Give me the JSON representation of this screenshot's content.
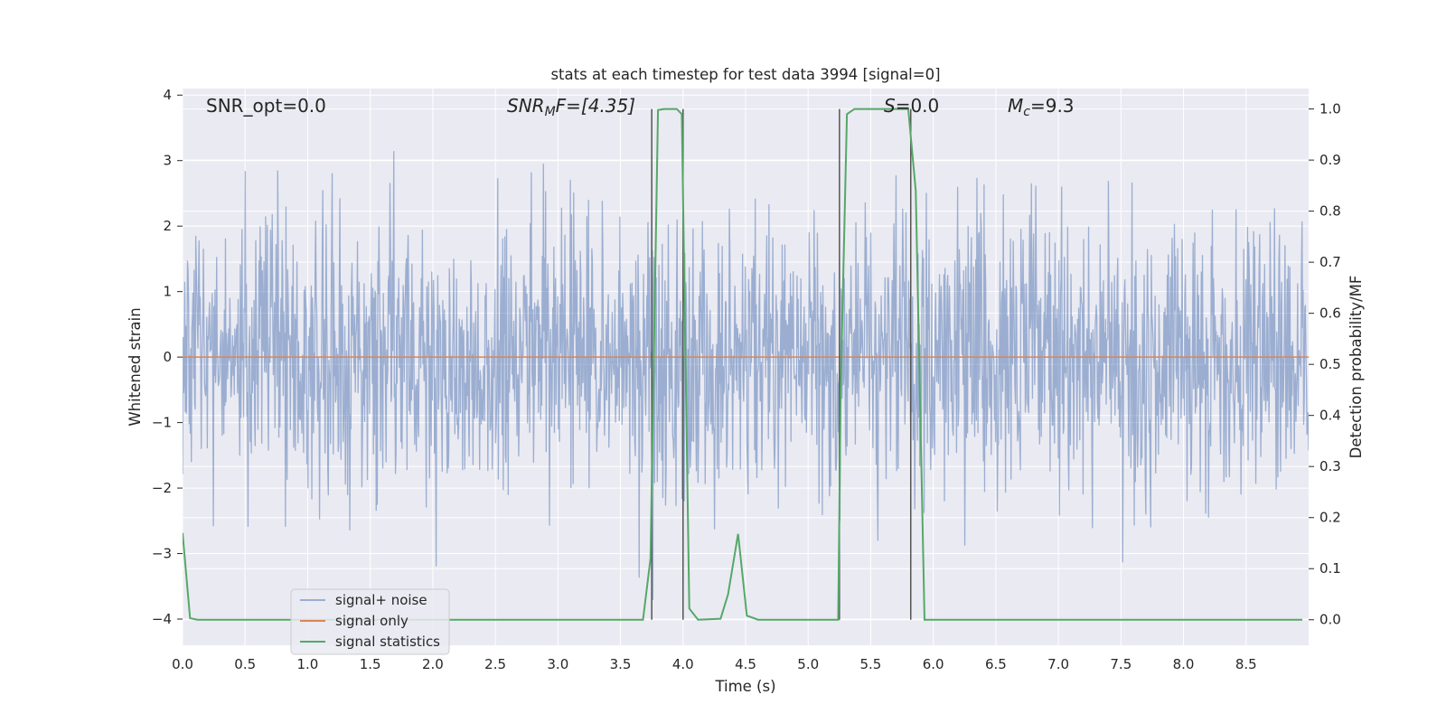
{
  "chart_data": {
    "type": "line",
    "title": "stats at each timestep for test data 3994 [signal=0]",
    "xlabel": "Time (s)",
    "ylabel": "Whitened strain",
    "y2label": "Detection probability/MF",
    "xlim": [
      0.0,
      9.0
    ],
    "ylim": [
      -4.4,
      4.1
    ],
    "y2lim": [
      -0.05,
      1.04
    ],
    "xticks": [
      "0.0",
      "0.5",
      "1.0",
      "1.5",
      "2.0",
      "2.5",
      "3.0",
      "3.5",
      "4.0",
      "4.5",
      "5.0",
      "5.5",
      "6.0",
      "6.5",
      "7.0",
      "7.5",
      "8.0",
      "8.5"
    ],
    "yticks": [
      "4",
      "3",
      "2",
      "1",
      "0",
      "−1",
      "−2",
      "−3",
      "−4"
    ],
    "y2ticks": [
      "1.0",
      "0.9",
      "0.8",
      "0.7",
      "0.6",
      "0.5",
      "0.4",
      "0.3",
      "0.2",
      "0.1",
      "0.0"
    ],
    "grid": true,
    "legend_position": "lower-left",
    "colors": {
      "plot_bg": "#eaeaf2",
      "grid": "#ffffff",
      "noise": "#4c72b0",
      "signal": "#dd8452",
      "stats": "#55a868",
      "vline": "#555555"
    },
    "annotations": {
      "snr_opt": "SNR_opt=0.0",
      "snr_mf_main": "SNR",
      "snr_mf_sub": "M",
      "snr_mf_rest": "F=[4.35]",
      "s_main": "S",
      "s_rest": "=0.0",
      "mc_main": "M",
      "mc_sub": "c",
      "mc_rest": "=9.3"
    },
    "series": [
      {
        "name": "signal+ noise",
        "kind": "noise",
        "x_range": [
          0.0,
          9.0
        ],
        "samples": 2048,
        "std": 1.05,
        "peak_range": [
          -3.7,
          3.45
        ]
      },
      {
        "name": "signal only",
        "x": [
          0.0,
          9.0
        ],
        "y": [
          0.0,
          0.0
        ]
      },
      {
        "name": "signal statistics",
        "axis": "right",
        "x": [
          0.0,
          0.06,
          0.12,
          0.5,
          1.0,
          2.0,
          3.0,
          3.68,
          3.74,
          3.8,
          3.85,
          3.95,
          3.99,
          4.05,
          4.12,
          4.3,
          4.36,
          4.44,
          4.51,
          4.6,
          4.8,
          5.0,
          5.24,
          5.26,
          5.31,
          5.37,
          5.5,
          5.8,
          5.86,
          5.93,
          6.0,
          7.0,
          8.0,
          8.95
        ],
        "y": [
          0.17,
          0.003,
          0.0,
          0.0,
          0.0,
          0.0,
          0.0,
          0.0,
          0.12,
          0.998,
          1.0,
          1.0,
          0.99,
          0.022,
          0.0,
          0.002,
          0.05,
          0.168,
          0.008,
          0.0,
          0.0,
          0.0,
          0.0,
          0.45,
          0.99,
          1.0,
          1.0,
          1.0,
          0.84,
          0.0,
          0.0,
          0.0,
          0.0,
          0.0
        ]
      }
    ],
    "vlines": [
      3.75,
      4.0,
      5.25,
      5.82
    ]
  }
}
